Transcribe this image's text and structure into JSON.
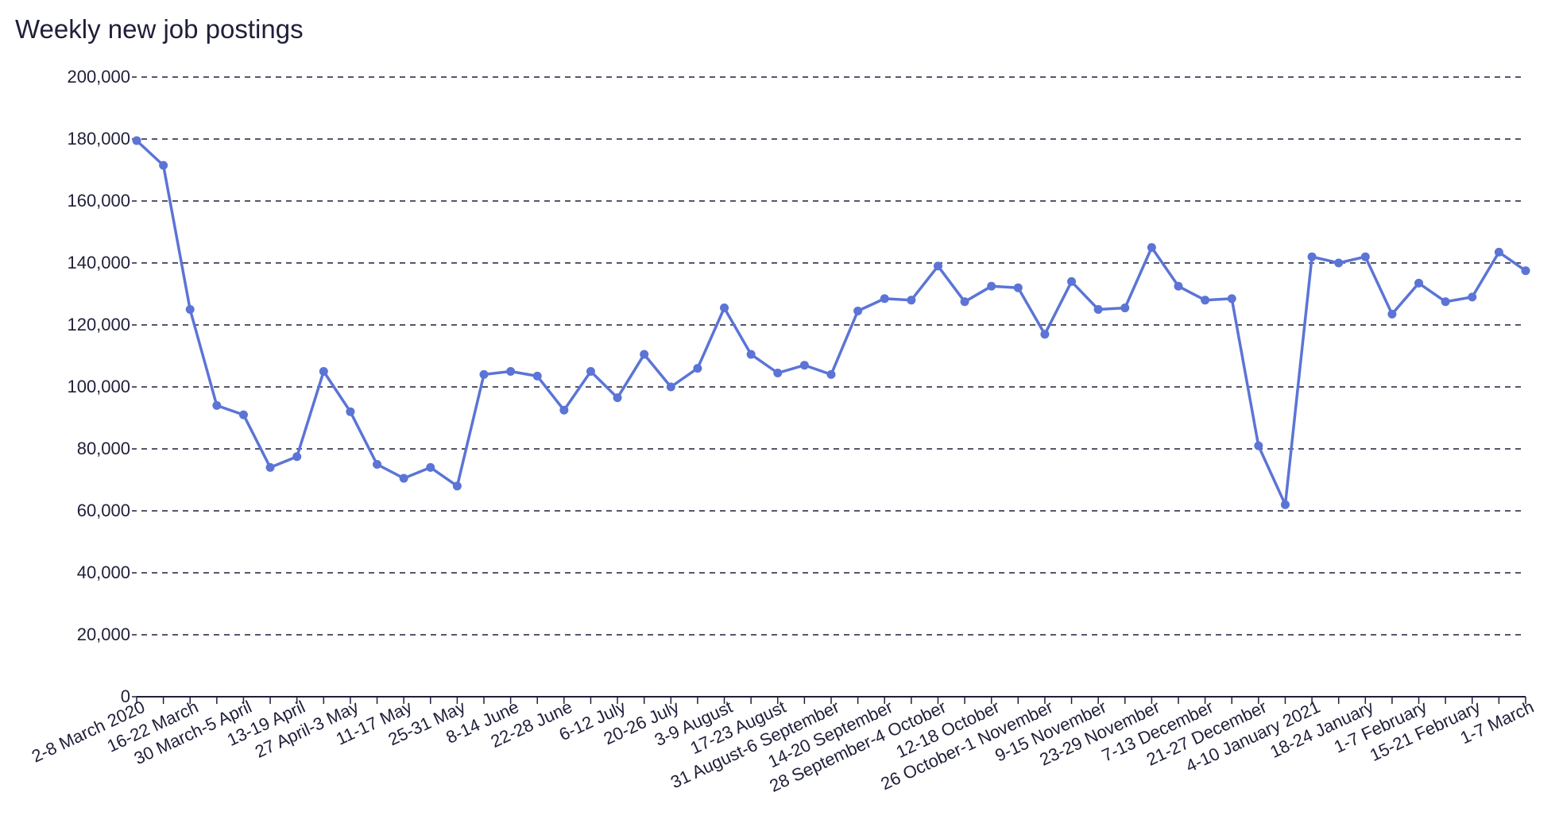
{
  "chart_data": {
    "type": "line",
    "title": "Weekly new job postings",
    "xlabel": "",
    "ylabel": "",
    "ylim": [
      0,
      200000
    ],
    "yticks": [
      0,
      20000,
      40000,
      60000,
      80000,
      100000,
      120000,
      140000,
      160000,
      180000,
      200000
    ],
    "ytick_labels": [
      "0",
      "20,000",
      "40,000",
      "60,000",
      "80,000",
      "100,000",
      "120,000",
      "140,000",
      "160,000",
      "180,000",
      "200,000"
    ],
    "grid": true,
    "legend": "none",
    "line_color": "#5b74d6",
    "x_tick_labels": [
      "2-8 March 2020",
      "16-22 March",
      "30 March-5 April",
      "13-19 April",
      "27 April-3 May",
      "11-17 May",
      "25-31 May",
      "8-14 June",
      "22-28 June",
      "6-12 July",
      "20-26 July",
      "3-9 August",
      "17-23 August",
      "31 August-6 September",
      "14-20 September",
      "28 September-4 October",
      "12-18 October",
      "26 October-1 November",
      "9-15 November",
      "23-29 November",
      "7-13 December",
      "21-27 December",
      "4-10 January 2021",
      "18-24 January",
      "1-7 February",
      "15-21 February",
      "1-7 March"
    ],
    "values": [
      179500,
      171500,
      125000,
      94000,
      91000,
      74000,
      77500,
      105000,
      92000,
      75000,
      70500,
      74000,
      68000,
      104000,
      105000,
      103500,
      92500,
      105000,
      96500,
      110500,
      100000,
      106000,
      125500,
      110500,
      104500,
      107000,
      104000,
      124500,
      128500,
      128000,
      139000,
      127500,
      132500,
      132000,
      117000,
      134000,
      125000,
      125500,
      145000,
      132500,
      128000,
      128500,
      81000,
      62000,
      142000,
      140000,
      142000,
      123500,
      133500,
      127500,
      129000,
      143500,
      137500
    ]
  }
}
